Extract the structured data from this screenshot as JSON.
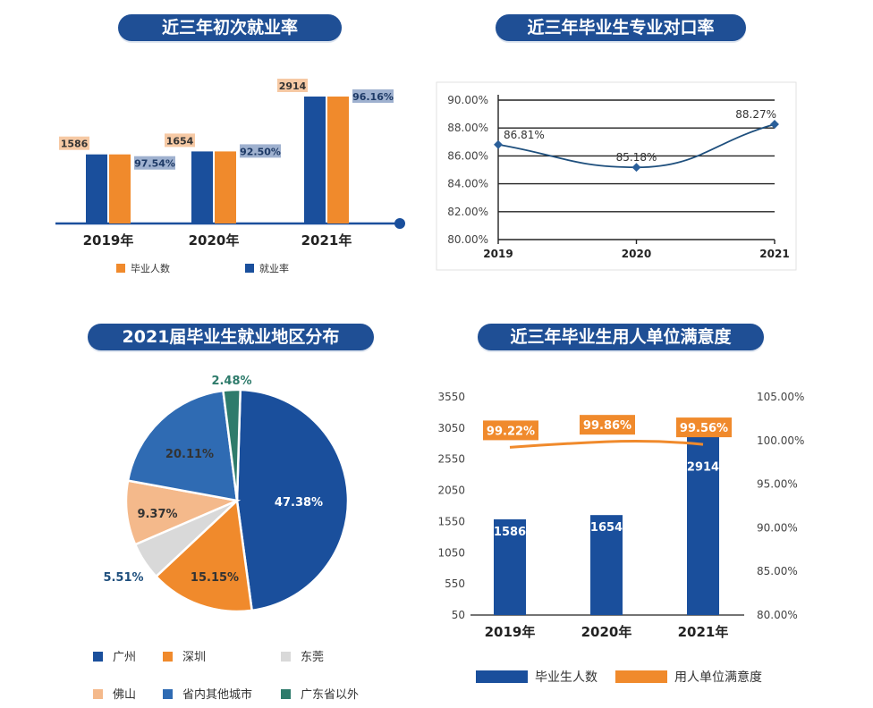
{
  "colors": {
    "blue": "#1a4f9c",
    "orange": "#f08a2c",
    "grey": "#d9d9d9",
    "peach": "#f4b98b",
    "midblue": "#2f6bb3",
    "teal": "#2e7b6b",
    "title_bg": "#1f4f95",
    "line": "#1e4f7d"
  },
  "panels": {
    "p1": {
      "title": "近三年初次就业率",
      "chart_data": {
        "type": "bar",
        "categories": [
          "2019年",
          "2020年",
          "2021年"
        ],
        "series": [
          {
            "name": "毕业人数",
            "values": [
              1586,
              1654,
              2914
            ],
            "labels": [
              "1586",
              "1654",
              "2914"
            ]
          },
          {
            "name": "就业率",
            "values": [
              97.54,
              92.5,
              96.16
            ],
            "labels": [
              "97.54%",
              "92.50%",
              "96.16%"
            ]
          }
        ],
        "legend": [
          "毕业人数",
          "就业率"
        ]
      }
    },
    "p2": {
      "title": "近三年毕业生专业对口率",
      "chart_data": {
        "type": "line",
        "x": [
          "2019",
          "2020",
          "2021"
        ],
        "values": [
          86.81,
          85.18,
          88.27
        ],
        "labels": [
          "86.81%",
          "85.18%",
          "88.27%"
        ],
        "ylim": [
          80,
          90
        ],
        "yticks": [
          "80.00%",
          "82.00%",
          "84.00%",
          "86.00%",
          "88.00%",
          "90.00%"
        ]
      }
    },
    "p3": {
      "title": "2021届毕业生就业地区分布",
      "chart_data": {
        "type": "pie",
        "slices": [
          {
            "name": "广州",
            "value": 47.38,
            "label": "47.38%"
          },
          {
            "name": "深圳",
            "value": 15.15,
            "label": "15.15%"
          },
          {
            "name": "东莞",
            "value": 5.51,
            "label": "5.51%"
          },
          {
            "name": "佛山",
            "value": 9.37,
            "label": "9.37%"
          },
          {
            "name": "省内其他城市",
            "value": 20.11,
            "label": "20.11%"
          },
          {
            "name": "广东省以外",
            "value": 2.48,
            "label": "2.48%"
          }
        ]
      }
    },
    "p4": {
      "title": "近三年毕业生用人单位满意度",
      "chart_data": {
        "type": "bar",
        "categories": [
          "2019年",
          "2020年",
          "2021年"
        ],
        "series": [
          {
            "name": "毕业生人数",
            "values": [
              1586,
              1654,
              2914
            ],
            "labels": [
              "1586",
              "1654",
              "2914"
            ]
          },
          {
            "name": "用人单位满意度",
            "values": [
              99.22,
              99.86,
              99.56
            ],
            "labels": [
              "99.22%",
              "99.86%",
              "99.56%"
            ]
          }
        ],
        "y_left": {
          "ylim": [
            50,
            3550
          ],
          "ticks": [
            "3550",
            "3050",
            "2550",
            "2050",
            "1550",
            "1050",
            "550",
            "50"
          ]
        },
        "y_right": {
          "ylim": [
            80,
            105
          ],
          "ticks": [
            "105.00%",
            "100.00%",
            "95.00%",
            "90.00%",
            "85.00%",
            "80.00%"
          ]
        }
      }
    }
  }
}
